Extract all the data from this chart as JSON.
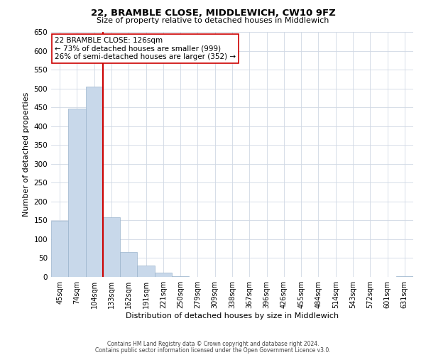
{
  "title": "22, BRAMBLE CLOSE, MIDDLEWICH, CW10 9FZ",
  "subtitle": "Size of property relative to detached houses in Middlewich",
  "xlabel": "Distribution of detached houses by size in Middlewich",
  "ylabel": "Number of detached properties",
  "bar_labels": [
    "45sqm",
    "74sqm",
    "104sqm",
    "133sqm",
    "162sqm",
    "191sqm",
    "221sqm",
    "250sqm",
    "279sqm",
    "309sqm",
    "338sqm",
    "367sqm",
    "396sqm",
    "426sqm",
    "455sqm",
    "484sqm",
    "514sqm",
    "543sqm",
    "572sqm",
    "601sqm",
    "631sqm"
  ],
  "bar_values": [
    148,
    447,
    505,
    158,
    66,
    31,
    12,
    2,
    0,
    0,
    0,
    0,
    0,
    0,
    0,
    0,
    0,
    0,
    0,
    0,
    2
  ],
  "bar_color": "#c8d8ea",
  "bar_edge_color": "#9ab4cc",
  "vline_color": "#cc0000",
  "ylim": [
    0,
    650
  ],
  "yticks": [
    0,
    50,
    100,
    150,
    200,
    250,
    300,
    350,
    400,
    450,
    500,
    550,
    600,
    650
  ],
  "annotation_title": "22 BRAMBLE CLOSE: 126sqm",
  "annotation_line1": "← 73% of detached houses are smaller (999)",
  "annotation_line2": "26% of semi-detached houses are larger (352) →",
  "annotation_box_color": "#ffffff",
  "annotation_box_edge": "#cc0000",
  "footer1": "Contains HM Land Registry data © Crown copyright and database right 2024.",
  "footer2": "Contains public sector information licensed under the Open Government Licence v3.0.",
  "bg_color": "#ffffff",
  "grid_color": "#d0d8e4"
}
